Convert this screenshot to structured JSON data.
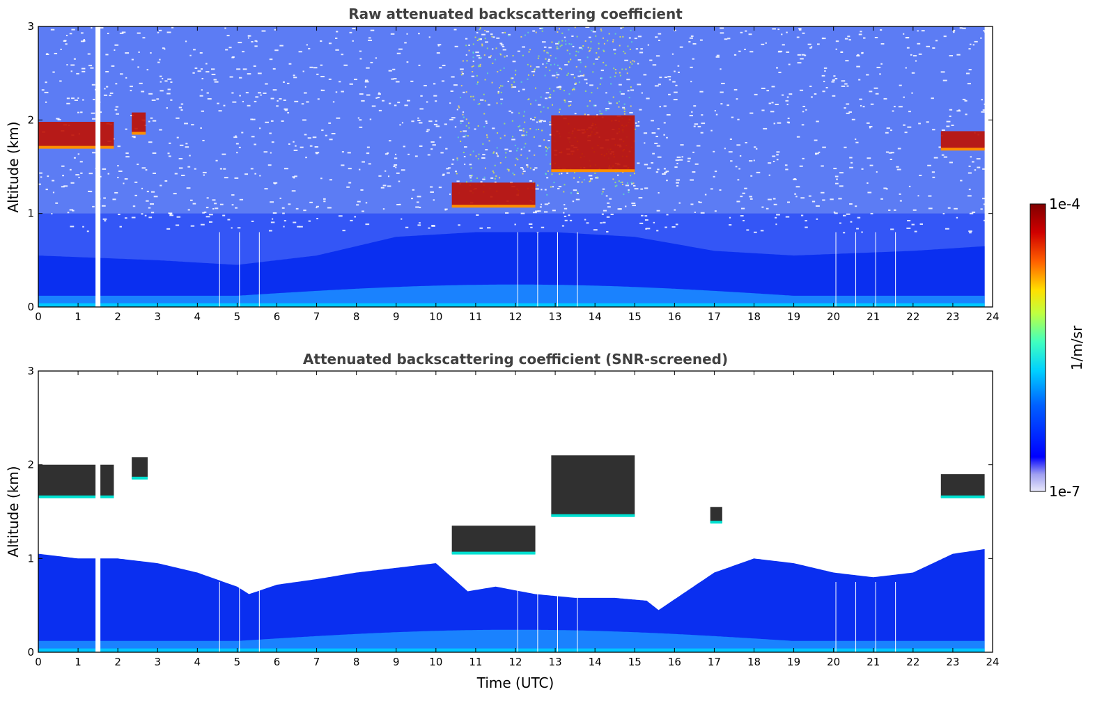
{
  "chart_data": [
    {
      "type": "heatmap",
      "title": "Raw attenuated backscattering coefficient",
      "xlabel": "",
      "ylabel": "Altitude (km)",
      "xlim": [
        0,
        24
      ],
      "ylim": [
        0,
        3
      ],
      "xticks": [
        "0",
        "1",
        "2",
        "3",
        "4",
        "5",
        "6",
        "7",
        "8",
        "9",
        "10",
        "11",
        "12",
        "13",
        "14",
        "15",
        "16",
        "17",
        "18",
        "19",
        "20",
        "21",
        "22",
        "23",
        "24"
      ],
      "yticks": [
        "0",
        "1",
        "2",
        "3"
      ],
      "data_end_hour": 23.8,
      "gap_hours": [
        1.5
      ],
      "thin_gap_hours": [
        4.55,
        5.05,
        5.55,
        12.05,
        12.55,
        13.05,
        13.55,
        20.05,
        20.55,
        21.05,
        21.55
      ],
      "boundary_layer_top_km": [
        [
          0,
          0.55
        ],
        [
          3,
          0.5
        ],
        [
          5,
          0.45
        ],
        [
          7,
          0.55
        ],
        [
          9,
          0.75
        ],
        [
          11,
          0.8
        ],
        [
          13,
          0.8
        ],
        [
          15,
          0.75
        ],
        [
          17,
          0.6
        ],
        [
          19,
          0.55
        ],
        [
          22,
          0.6
        ],
        [
          23.8,
          0.65
        ]
      ],
      "cloud_layers": [
        {
          "t_start": 0.0,
          "t_end": 1.9,
          "base_km": 1.7,
          "top_km": 1.98
        },
        {
          "t_start": 2.35,
          "t_end": 2.7,
          "base_km": 1.85,
          "top_km": 2.08
        },
        {
          "t_start": 10.4,
          "t_end": 12.5,
          "base_km": 1.07,
          "top_km": 1.33
        },
        {
          "t_start": 12.9,
          "t_end": 15.0,
          "base_km": 1.45,
          "top_km": 2.05
        },
        {
          "t_start": 22.7,
          "t_end": 23.8,
          "base_km": 1.68,
          "top_km": 1.88
        }
      ],
      "aerosol_upper_region": {
        "t_start": 10.5,
        "t_end": 15.0,
        "top_km": 3.0
      }
    },
    {
      "type": "heatmap",
      "title": "Attenuated backscattering coefficient (SNR-screened)",
      "xlabel": "Time (UTC)",
      "ylabel": "Altitude (km)",
      "xlim": [
        0,
        24
      ],
      "ylim": [
        0,
        3
      ],
      "xticks": [
        "0",
        "1",
        "2",
        "3",
        "4",
        "5",
        "6",
        "7",
        "8",
        "9",
        "10",
        "11",
        "12",
        "13",
        "14",
        "15",
        "16",
        "17",
        "18",
        "19",
        "20",
        "21",
        "22",
        "23",
        "24"
      ],
      "yticks": [
        "0",
        "1",
        "2",
        "3"
      ],
      "data_end_hour": 23.8,
      "gap_hours": [
        1.5
      ],
      "thin_gap_hours": [
        4.55,
        5.05,
        5.55,
        12.05,
        12.55,
        13.05,
        13.55,
        20.05,
        20.55,
        21.05,
        21.55
      ],
      "screened_top_km": [
        [
          0,
          1.05
        ],
        [
          1,
          1.0
        ],
        [
          2,
          1.0
        ],
        [
          3,
          0.95
        ],
        [
          4,
          0.85
        ],
        [
          5,
          0.7
        ],
        [
          5.3,
          0.62
        ],
        [
          6,
          0.72
        ],
        [
          7,
          0.78
        ],
        [
          8,
          0.85
        ],
        [
          9,
          0.9
        ],
        [
          10,
          0.95
        ],
        [
          10.8,
          0.65
        ],
        [
          11.5,
          0.7
        ],
        [
          12.5,
          0.62
        ],
        [
          13.5,
          0.58
        ],
        [
          14.5,
          0.58
        ],
        [
          15.3,
          0.55
        ],
        [
          15.6,
          0.45
        ],
        [
          16.3,
          0.65
        ],
        [
          17.0,
          0.85
        ],
        [
          18,
          1.0
        ],
        [
          19,
          0.95
        ],
        [
          20,
          0.85
        ],
        [
          21,
          0.8
        ],
        [
          22,
          0.85
        ],
        [
          23,
          1.05
        ],
        [
          23.8,
          1.1
        ]
      ],
      "cloud_layers": [
        {
          "t_start": 0.0,
          "t_end": 1.9,
          "base_km": 1.65,
          "top_km": 2.0
        },
        {
          "t_start": 2.35,
          "t_end": 2.75,
          "base_km": 1.85,
          "top_km": 2.08
        },
        {
          "t_start": 10.4,
          "t_end": 12.5,
          "base_km": 1.05,
          "top_km": 1.35
        },
        {
          "t_start": 12.9,
          "t_end": 15.0,
          "base_km": 1.45,
          "top_km": 2.1
        },
        {
          "t_start": 16.9,
          "t_end": 17.2,
          "base_km": 1.38,
          "top_km": 1.55
        },
        {
          "t_start": 22.7,
          "t_end": 23.8,
          "base_km": 1.65,
          "top_km": 1.9
        }
      ]
    }
  ],
  "colorbar": {
    "label": "1/m/sr",
    "max_label": "1e-4",
    "min_label": "1e-7",
    "scale": "log",
    "colormap": "jet",
    "colors": [
      "#e6e6fa",
      "#9f9ff0",
      "#0000ff",
      "#0060ff",
      "#00d0ff",
      "#40ffc0",
      "#c0ff40",
      "#ffe000",
      "#ff6000",
      "#d00000",
      "#800000"
    ]
  }
}
